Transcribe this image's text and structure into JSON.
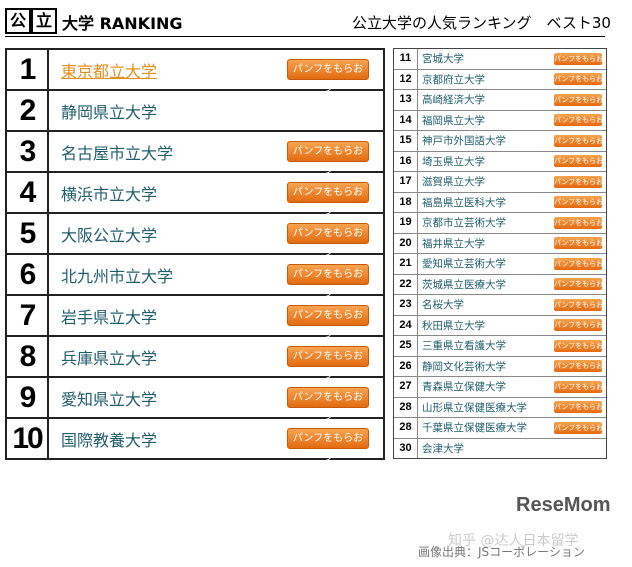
{
  "header": {
    "badge": [
      "公",
      "立"
    ],
    "label": "大学 RANKING",
    "title": "公立大学の人気ランキング　ベスト30"
  },
  "button_label": "パンフをもらおう",
  "left_rows": [
    {
      "rank": "1",
      "name": "東京都立大学",
      "button": true
    },
    {
      "rank": "2",
      "name": "静岡県立大学",
      "button": false
    },
    {
      "rank": "3",
      "name": "名古屋市立大学",
      "button": true
    },
    {
      "rank": "4",
      "name": "横浜市立大学",
      "button": true
    },
    {
      "rank": "5",
      "name": "大阪公立大学",
      "button": true
    },
    {
      "rank": "6",
      "name": "北九州市立大学",
      "button": true
    },
    {
      "rank": "7",
      "name": "岩手県立大学",
      "button": true
    },
    {
      "rank": "8",
      "name": "兵庫県立大学",
      "button": true
    },
    {
      "rank": "9",
      "name": "愛知県立大学",
      "button": true
    },
    {
      "rank": "10",
      "name": "国際教養大学",
      "button": true
    }
  ],
  "right_rows": [
    {
      "rank": "11",
      "name": "宮城大学",
      "button": true
    },
    {
      "rank": "12",
      "name": "京都府立大学",
      "button": true
    },
    {
      "rank": "13",
      "name": "高崎経済大学",
      "button": true
    },
    {
      "rank": "14",
      "name": "福岡県立大学",
      "button": true
    },
    {
      "rank": "15",
      "name": "神戸市外国語大学",
      "button": true
    },
    {
      "rank": "16",
      "name": "埼玉県立大学",
      "button": true
    },
    {
      "rank": "17",
      "name": "滋賀県立大学",
      "button": true
    },
    {
      "rank": "18",
      "name": "福島県立医科大学",
      "button": true
    },
    {
      "rank": "19",
      "name": "京都市立芸術大学",
      "button": true
    },
    {
      "rank": "20",
      "name": "福井県立大学",
      "button": true
    },
    {
      "rank": "21",
      "name": "愛知県立芸術大学",
      "button": true
    },
    {
      "rank": "22",
      "name": "茨城県立医療大学",
      "button": true
    },
    {
      "rank": "23",
      "name": "名桜大学",
      "button": true
    },
    {
      "rank": "24",
      "name": "秋田県立大学",
      "button": true
    },
    {
      "rank": "25",
      "name": "三重県立看護大学",
      "button": true
    },
    {
      "rank": "26",
      "name": "静岡文化芸術大学",
      "button": true
    },
    {
      "rank": "27",
      "name": "青森県立保健大学",
      "button": true
    },
    {
      "rank": "28",
      "name": "山形県立保健医療大学",
      "button": true
    },
    {
      "rank": "28",
      "name": "千葉県立保健医療大学",
      "button": true
    },
    {
      "rank": "30",
      "name": "会津大学",
      "button": false
    }
  ],
  "footer": {
    "brand": "ReseMom",
    "watermark": "知乎 @达人日本留学",
    "source": "画像出典：JSコーポレーション"
  }
}
